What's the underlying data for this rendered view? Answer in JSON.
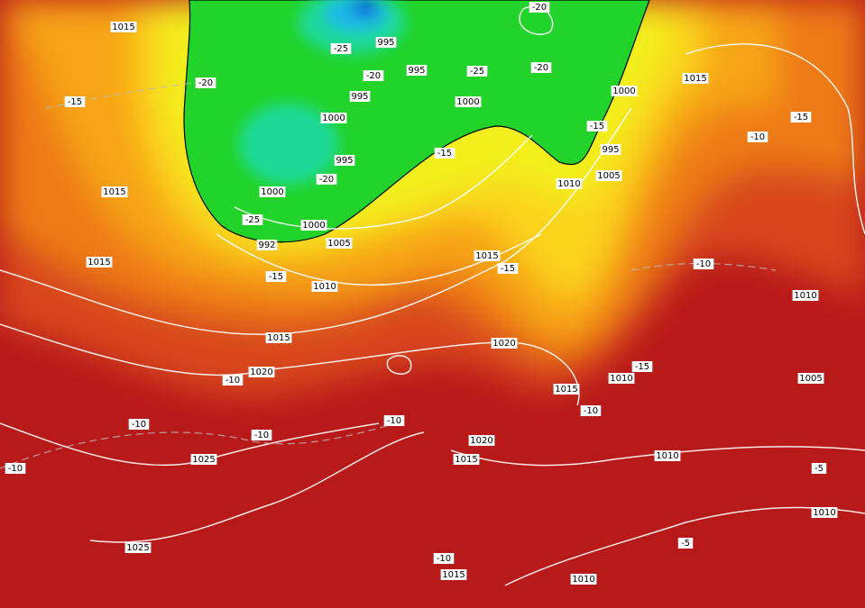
{
  "labels": [
    "1015",
    "-15",
    "-20",
    "-25",
    "995",
    "995",
    "-20",
    "-25",
    "-20",
    "-20",
    "995",
    "1000",
    "1000",
    "1000",
    "1015",
    "-15",
    "-10",
    "-15",
    "995",
    "-15",
    "995",
    "-20",
    "1000",
    "1015",
    "1010",
    "1005",
    "-25",
    "1000",
    "1005",
    "992",
    "1015",
    "-15",
    "1010",
    "1015",
    "-15",
    "-10",
    "1010",
    "1015",
    "1020",
    "1020",
    "-10",
    "-15",
    "1010",
    "1005",
    "1015",
    "-10",
    "-10",
    "-10",
    "-10",
    "1020",
    "1015",
    "1025",
    "1010",
    "-10",
    "1010",
    "-5",
    "1025",
    "-10",
    "1015",
    "1010",
    "-5"
  ]
}
